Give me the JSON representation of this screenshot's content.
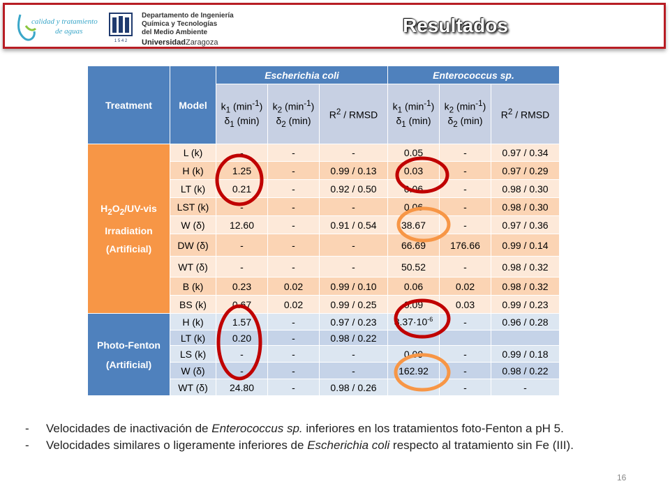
{
  "header": {
    "logo1_line1": "calidad y tratamiento",
    "logo1_line2": "de aguas",
    "dept_line1": "Departamento de Ingeniería",
    "dept_line2": "Química y Tecnologías",
    "dept_line3": "del Medio Ambiente",
    "univ_bold": "Universidad",
    "univ_rest": "Zaragoza",
    "crest_year": "1 5 4 2",
    "title": "Resultados"
  },
  "table": {
    "col_treatment": "Treatment",
    "col_model": "Model",
    "group1": "Escherichia coli",
    "group2": "Enterococcus sp.",
    "k1": "k",
    "k1_sub": "1",
    "k2_sub": "2",
    "min_unit": " (min",
    "min_sup": "-1",
    "close_paren": ")",
    "delta": "δ",
    "delta_unit": " (min)",
    "r2": "R",
    "r2_sup": "2",
    "r2_rest": " / RMSD",
    "treat1_a": "H",
    "treat1_sub1": "2",
    "treat1_b": "O",
    "treat1_sub2": "2",
    "treat1_c": "/UV-vis",
    "treat1_line2": "Irradiation",
    "treat1_line3": "(Artificial)",
    "treat2_line1": "Photo-Fenton",
    "treat2_line2": "(Artificial)",
    "rows1": [
      {
        "model": "L (k)",
        "v": [
          "-",
          "-",
          "-",
          "0.05",
          "-",
          "0.97 / 0.34"
        ]
      },
      {
        "model": "H (k)",
        "v": [
          "1.25",
          "-",
          "0.99 / 0.13",
          "0.03",
          "-",
          "0.97 / 0.29"
        ]
      },
      {
        "model": "LT (k)",
        "v": [
          "0.21",
          "-",
          "0.92 / 0.50",
          "0.06",
          "-",
          "0.98 / 0.30"
        ]
      },
      {
        "model": "LST (k)",
        "v": [
          "-",
          "-",
          "-",
          "0.06",
          "-",
          "0.98 / 0.30"
        ]
      },
      {
        "model": "W (δ)",
        "v": [
          "12.60",
          "-",
          "0.91 / 0.54",
          "38.67",
          "-",
          "0.97 / 0.36"
        ]
      },
      {
        "model": "DW (δ)",
        "v": [
          "-",
          "-",
          "-",
          "66.69",
          "176.66",
          "0.99 / 0.14"
        ]
      },
      {
        "model": "WT (δ)",
        "v": [
          "-",
          "-",
          "-",
          "50.52",
          "-",
          "0.98 / 0.32"
        ]
      },
      {
        "model": "B (k)",
        "v": [
          "0.23",
          "0.02",
          "0.99 / 0.10",
          "0.06",
          "0.02",
          "0.98 / 0.32"
        ]
      },
      {
        "model": "BS (k)",
        "v": [
          "0.67",
          "0.02",
          "0.99 / 0.25",
          "0.09",
          "0.03",
          "0.99 / 0.23"
        ]
      }
    ],
    "rows2": [
      {
        "model": "H (k)",
        "v": [
          "1.57",
          "-",
          "0.97 / 0.23",
          "8.37·10",
          "-",
          "0.96 / 0.28"
        ],
        "sup": "-6"
      },
      {
        "model": "LT (k)",
        "v": [
          "0.20",
          "-",
          "0.98 / 0.22",
          "",
          "",
          ""
        ]
      },
      {
        "model": "LS (k)",
        "v": [
          "-",
          "-",
          "-",
          "0.09",
          "-",
          "0.99 / 0.18"
        ]
      },
      {
        "model": "W (δ)",
        "v": [
          "-",
          "-",
          "-",
          "162.92",
          "-",
          "0.98 / 0.22"
        ]
      },
      {
        "model": "WT (δ)",
        "v": [
          "24.80",
          "-",
          "0.98 / 0.26",
          "-",
          "-",
          "-"
        ]
      }
    ]
  },
  "bullets": {
    "dash": "-",
    "b1_pre": "Velocidades de inactivación de ",
    "b1_em": "Enterococcus sp.",
    "b1_post": "  inferiores en los tratamientos foto-Fenton a pH 5.",
    "b2_pre": "Velocidades similares o ligeramente inferiores de ",
    "b2_em": "Escherichia coli",
    "b2_post": " respecto al tratamiento sin Fe (III)."
  },
  "page_number": "16",
  "colors": {
    "header_border": "#b81d24",
    "table_header": "#4f81bd",
    "treatment_uv": "#f79646",
    "circle_red": "#c00000",
    "circle_orange": "#f79646"
  }
}
